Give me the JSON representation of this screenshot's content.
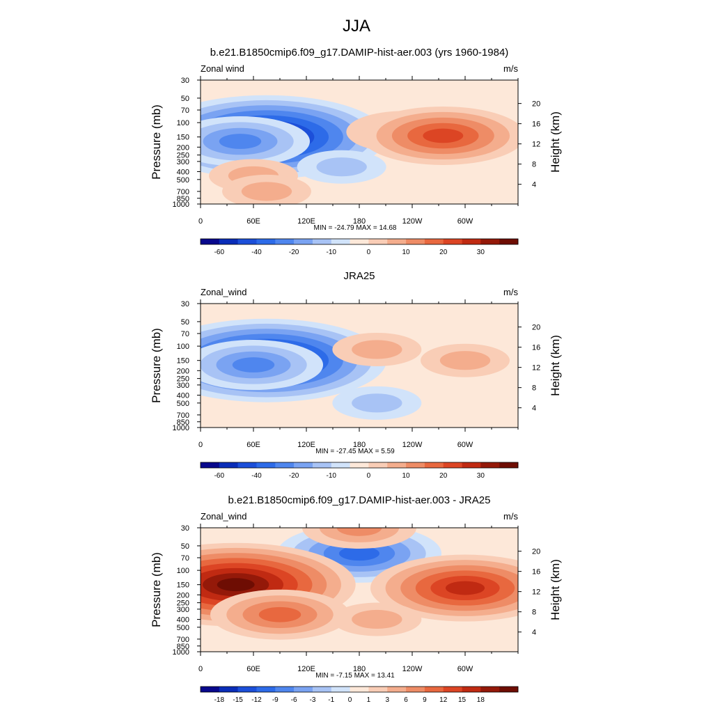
{
  "page": {
    "title": "JJA"
  },
  "chart_data": [
    {
      "type": "heatmap",
      "title": "b.e21.B1850cmip6.f09_g17.DAMIP-hist-aer.003 (yrs 1960-1984)",
      "left_label": "Zonal wind",
      "units": "m/s",
      "ylabel": "Pressure (mb)",
      "ylabel_right": "Height (km)",
      "x_ticks": [
        "0",
        "60E",
        "120E",
        "180",
        "120W",
        "60W"
      ],
      "x_tick_lon": [
        0,
        60,
        120,
        180,
        240,
        300
      ],
      "xlim": [
        0,
        360
      ],
      "y_ticks": [
        "30",
        "50",
        "70",
        "100",
        "150",
        "200",
        "250",
        "300",
        "400",
        "500",
        "700",
        "850",
        "1000"
      ],
      "y_tick_p": [
        30,
        50,
        70,
        100,
        150,
        200,
        250,
        300,
        400,
        500,
        700,
        850,
        1000
      ],
      "ylim": [
        1000,
        30
      ],
      "y_scale": "log",
      "height_ticks": [
        "20",
        "16",
        "12",
        "8",
        "4"
      ],
      "height_km": [
        20,
        16,
        12,
        8,
        4
      ],
      "stats": "MIN = -24.79  MAX =  14.68",
      "min": -24.79,
      "max": 14.68,
      "colorbar": {
        "labels": [
          "-60",
          "-40",
          "-20",
          "-10",
          "0",
          "10",
          "20",
          "30"
        ],
        "colors": [
          "#08088c",
          "#0a2db8",
          "#1c4fd9",
          "#2d6be8",
          "#4f86ee",
          "#7aa3f2",
          "#a8c3f5",
          "#d1e3fa",
          "#fde8d9",
          "#f9cdb6",
          "#f4ad8d",
          "#ee8c66",
          "#e8683f",
          "#dc4524",
          "#c02a12",
          "#941909",
          "#6e0d03"
        ]
      },
      "features": [
        {
          "lon": 75,
          "p": 150,
          "value": -24.79
        },
        {
          "lon": 45,
          "p": 170,
          "value": -12
        },
        {
          "lon": 160,
          "p": 350,
          "value": -3
        },
        {
          "lon": 230,
          "p": 130,
          "value": 6
        },
        {
          "lon": 275,
          "p": 145,
          "value": 14.68
        },
        {
          "lon": 60,
          "p": 450,
          "value": 3
        },
        {
          "lon": 75,
          "p": 700,
          "value": 5
        }
      ]
    },
    {
      "type": "heatmap",
      "title": "JRA25",
      "left_label": "Zonal_wind",
      "units": "m/s",
      "ylabel": "Pressure (mb)",
      "ylabel_right": "Height (km)",
      "x_ticks": [
        "0",
        "60E",
        "120E",
        "180",
        "120W",
        "60W"
      ],
      "x_tick_lon": [
        0,
        60,
        120,
        180,
        240,
        300
      ],
      "xlim": [
        0,
        360
      ],
      "y_ticks": [
        "30",
        "50",
        "70",
        "100",
        "150",
        "200",
        "250",
        "300",
        "400",
        "500",
        "700",
        "850",
        "1000"
      ],
      "y_tick_p": [
        30,
        50,
        70,
        100,
        150,
        200,
        250,
        300,
        400,
        500,
        700,
        850,
        1000
      ],
      "ylim": [
        1000,
        30
      ],
      "y_scale": "log",
      "height_ticks": [
        "20",
        "16",
        "12",
        "8",
        "4"
      ],
      "height_km": [
        20,
        16,
        12,
        8,
        4
      ],
      "stats": "MIN = -27.45  MAX =   5.59",
      "min": -27.45,
      "max": 5.59,
      "colorbar": {
        "labels": [
          "-60",
          "-40",
          "-20",
          "-10",
          "0",
          "10",
          "20",
          "30"
        ],
        "colors": [
          "#08088c",
          "#0a2db8",
          "#1c4fd9",
          "#2d6be8",
          "#4f86ee",
          "#7aa3f2",
          "#a8c3f5",
          "#d1e3fa",
          "#fde8d9",
          "#f9cdb6",
          "#f4ad8d",
          "#ee8c66",
          "#e8683f",
          "#dc4524",
          "#c02a12",
          "#941909",
          "#6e0d03"
        ]
      },
      "features": [
        {
          "lon": 75,
          "p": 150,
          "value": -27.45
        },
        {
          "lon": 60,
          "p": 170,
          "value": -13
        },
        {
          "lon": 200,
          "p": 110,
          "value": 4
        },
        {
          "lon": 300,
          "p": 150,
          "value": 5.59
        },
        {
          "lon": 200,
          "p": 500,
          "value": -3
        }
      ]
    },
    {
      "type": "heatmap",
      "title": "b.e21.B1850cmip6.f09_g17.DAMIP-hist-aer.003 - JRA25",
      "left_label": "Zonal_wind",
      "units": "m/s",
      "ylabel": "Pressure (mb)",
      "ylabel_right": "Height (km)",
      "x_ticks": [
        "0",
        "60E",
        "120E",
        "180",
        "120W",
        "60W"
      ],
      "x_tick_lon": [
        0,
        60,
        120,
        180,
        240,
        300
      ],
      "xlim": [
        0,
        360
      ],
      "y_ticks": [
        "30",
        "50",
        "70",
        "100",
        "150",
        "200",
        "250",
        "300",
        "400",
        "500",
        "700",
        "850",
        "1000"
      ],
      "y_tick_p": [
        30,
        50,
        70,
        100,
        150,
        200,
        250,
        300,
        400,
        500,
        700,
        850,
        1000
      ],
      "ylim": [
        1000,
        30
      ],
      "y_scale": "log",
      "height_ticks": [
        "20",
        "16",
        "12",
        "8",
        "4"
      ],
      "height_km": [
        20,
        16,
        12,
        8,
        4
      ],
      "stats": "MIN =  -7.15  MAX =  13.41",
      "min": -7.15,
      "max": 13.41,
      "colorbar": {
        "labels": [
          "-18",
          "-15",
          "-12",
          "-9",
          "-6",
          "-3",
          "-1",
          "0",
          "1",
          "3",
          "6",
          "9",
          "12",
          "15",
          "18"
        ],
        "colors": [
          "#08088c",
          "#0a2db8",
          "#1c4fd9",
          "#2d6be8",
          "#4f86ee",
          "#7aa3f2",
          "#a8c3f5",
          "#d1e3fa",
          "#fde8d9",
          "#f9cdb6",
          "#f4ad8d",
          "#ee8c66",
          "#e8683f",
          "#dc4524",
          "#c02a12",
          "#941909",
          "#6e0d03"
        ]
      },
      "features": [
        {
          "lon": 180,
          "p": 62,
          "value": -7.15
        },
        {
          "lon": 40,
          "p": 150,
          "value": 13.41
        },
        {
          "lon": 300,
          "p": 165,
          "value": 10
        },
        {
          "lon": 90,
          "p": 350,
          "value": 5
        },
        {
          "lon": 200,
          "p": 400,
          "value": 2
        },
        {
          "lon": 180,
          "p": 30,
          "value": 4
        }
      ]
    }
  ]
}
